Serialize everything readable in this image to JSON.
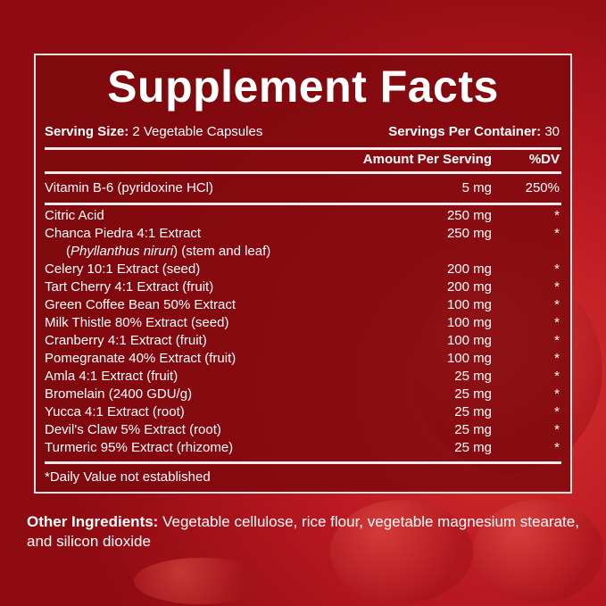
{
  "title": "Supplement Facts",
  "serving_size_label": "Serving Size:",
  "serving_size": "2 Vegetable Capsules",
  "servings_label": "Servings Per Container:",
  "servings": "30",
  "col_amount": "Amount Per Serving",
  "col_dv": "%DV",
  "vitamin": {
    "name": "Vitamin B-6 (pyridoxine HCl)",
    "amount": "5 mg",
    "dv": "250%"
  },
  "ingredients": [
    {
      "name": "Citric Acid",
      "amount": "250 mg",
      "dv": "*"
    },
    {
      "name": "Chanca Piedra 4:1 Extract",
      "amount": "250 mg",
      "dv": "*",
      "sub_italic": "Phyllanthus niruri",
      "sub_rest": "(stem and leaf)"
    },
    {
      "name": "Celery 10:1 Extract (seed)",
      "amount": "200 mg",
      "dv": "*"
    },
    {
      "name": "Tart Cherry 4:1 Extract (fruit)",
      "amount": "200 mg",
      "dv": "*"
    },
    {
      "name": "Green Coffee Bean 50% Extract",
      "amount": "100 mg",
      "dv": "*"
    },
    {
      "name": "Milk Thistle 80% Extract (seed)",
      "amount": "100 mg",
      "dv": "*"
    },
    {
      "name": "Cranberry 4:1 Extract (fruit)",
      "amount": "100 mg",
      "dv": "*"
    },
    {
      "name": "Pomegranate 40% Extract (fruit)",
      "amount": "100 mg",
      "dv": "*"
    },
    {
      "name": "Amla 4:1 Extract (fruit)",
      "amount": "25 mg",
      "dv": "*"
    },
    {
      "name": "Bromelain (2400 GDU/g)",
      "amount": "25 mg",
      "dv": "*"
    },
    {
      "name": "Yucca 4:1 Extract (root)",
      "amount": "25 mg",
      "dv": "*"
    },
    {
      "name": "Devil's Claw 5% Extract (root)",
      "amount": "25 mg",
      "dv": "*"
    },
    {
      "name": "Turmeric 95% Extract (rhizome)",
      "amount": "25 mg",
      "dv": "*"
    }
  ],
  "footnote": "*Daily Value not established",
  "other_label": "Other Ingredients:",
  "other_text": "Vegetable cellulose, rice flour, vegetable magnesium stearate, and silicon dioxide"
}
